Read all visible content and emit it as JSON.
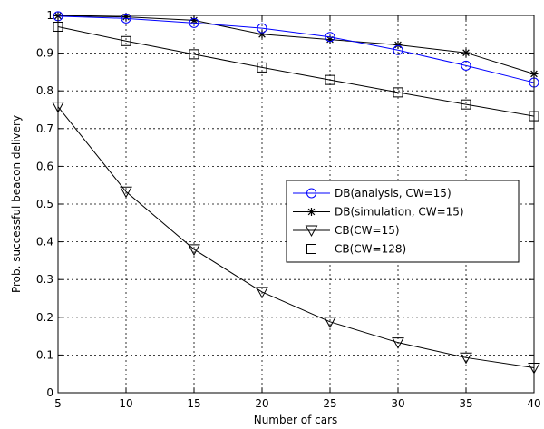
{
  "chart_data": {
    "type": "line",
    "title": "",
    "xlabel": "Number of cars",
    "ylabel": "Prob. successful beacon delivery",
    "xlim": [
      5,
      40
    ],
    "ylim": [
      0,
      1
    ],
    "x": [
      5,
      10,
      15,
      20,
      25,
      30,
      35,
      40
    ],
    "x_ticks": [
      "5",
      "10",
      "15",
      "20",
      "25",
      "30",
      "35",
      "40"
    ],
    "y_ticks": [
      "0",
      "0.1",
      "0.2",
      "0.3",
      "0.4",
      "0.5",
      "0.6",
      "0.7",
      "0.8",
      "0.9",
      "1"
    ],
    "y_tick_values": [
      0,
      0.1,
      0.2,
      0.3,
      0.4,
      0.5,
      0.6,
      0.7,
      0.8,
      0.9,
      1
    ],
    "grid": true,
    "legend_position": "center-right",
    "series": [
      {
        "name": "DB(analysis, CW=15)",
        "values": [
          0.998,
          0.992,
          0.98,
          0.966,
          0.943,
          0.908,
          0.867,
          0.822
        ],
        "color": "#0000ff",
        "marker": "circle"
      },
      {
        "name": "DB(simulation, CW=15)",
        "values": [
          0.999,
          0.996,
          0.987,
          0.95,
          0.936,
          0.922,
          0.901,
          0.845
        ],
        "color": "#000000",
        "marker": "star"
      },
      {
        "name": "CB(CW=15)",
        "values": [
          0.758,
          0.533,
          0.38,
          0.267,
          0.188,
          0.133,
          0.093,
          0.066
        ],
        "color": "#000000",
        "marker": "triangle-down"
      },
      {
        "name": "CB(CW=128)",
        "values": [
          0.97,
          0.932,
          0.897,
          0.862,
          0.829,
          0.796,
          0.764,
          0.733
        ],
        "color": "#000000",
        "marker": "square"
      }
    ]
  }
}
